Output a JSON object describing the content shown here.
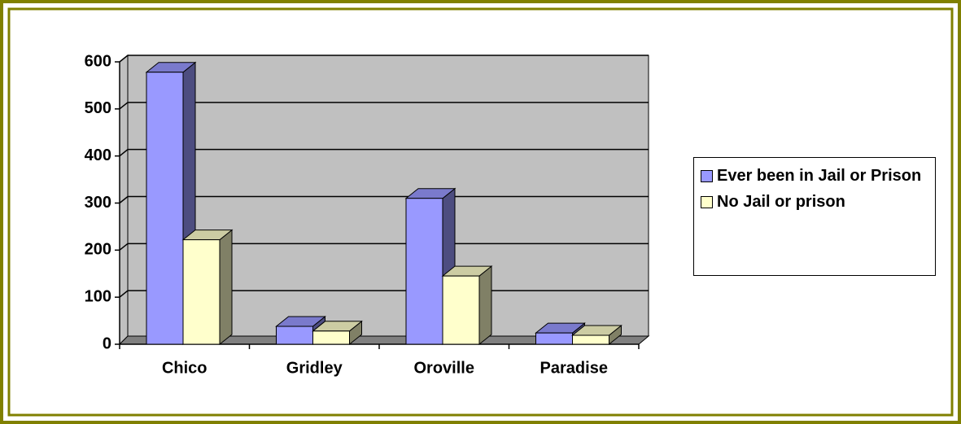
{
  "chart_data": {
    "type": "bar",
    "three_d": true,
    "categories": [
      "Chico",
      "Gridley",
      "Oroville",
      "Paradise"
    ],
    "series": [
      {
        "name": "Ever been in Jail or Prison",
        "color": "#9999ff",
        "values": [
          578,
          38,
          310,
          24
        ]
      },
      {
        "name": "No Jail or prison",
        "color": "#ffffcc",
        "values": [
          222,
          28,
          145,
          19
        ]
      }
    ],
    "ylim": [
      0,
      600
    ],
    "yticks": [
      0,
      100,
      200,
      300,
      400,
      500,
      600
    ],
    "grid": true,
    "legend": "right"
  }
}
